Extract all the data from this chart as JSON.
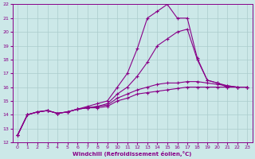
{
  "xlabel": "Windchill (Refroidissement éolien,°C)",
  "background_color": "#cce8e8",
  "grid_color": "#aacccc",
  "line_color": "#880088",
  "xlim_min": -0.5,
  "xlim_max": 23.5,
  "ylim_min": 12,
  "ylim_max": 22,
  "xticks": [
    0,
    1,
    2,
    3,
    4,
    5,
    6,
    7,
    8,
    9,
    10,
    11,
    12,
    13,
    14,
    15,
    16,
    17,
    18,
    19,
    20,
    21,
    22,
    23
  ],
  "yticks": [
    12,
    13,
    14,
    15,
    16,
    17,
    18,
    19,
    20,
    21,
    22
  ],
  "series": [
    [
      12.5,
      14.0,
      14.2,
      14.3,
      14.1,
      14.2,
      14.4,
      14.5,
      14.5,
      14.6,
      15.0,
      15.2,
      15.5,
      15.6,
      15.7,
      15.8,
      15.9,
      16.0,
      16.0,
      16.0,
      16.0,
      16.0,
      16.0,
      16.0
    ],
    [
      12.5,
      14.0,
      14.2,
      14.3,
      14.1,
      14.2,
      14.4,
      14.5,
      14.6,
      14.7,
      15.2,
      15.5,
      15.8,
      16.0,
      16.2,
      16.3,
      16.3,
      16.4,
      16.4,
      16.3,
      16.2,
      16.1,
      16.0,
      16.0
    ],
    [
      12.5,
      14.0,
      14.2,
      14.3,
      14.1,
      14.2,
      14.4,
      14.5,
      14.6,
      14.8,
      15.5,
      16.0,
      16.8,
      17.8,
      19.0,
      19.5,
      20.0,
      20.2,
      18.0,
      16.5,
      16.3,
      16.1,
      16.0,
      16.0
    ],
    [
      12.5,
      14.0,
      14.2,
      14.3,
      14.1,
      14.2,
      14.4,
      14.6,
      14.8,
      15.0,
      16.0,
      17.0,
      18.8,
      21.0,
      21.5,
      22.0,
      21.0,
      21.0,
      18.1,
      16.5,
      16.3,
      16.0,
      16.0,
      16.0
    ]
  ]
}
